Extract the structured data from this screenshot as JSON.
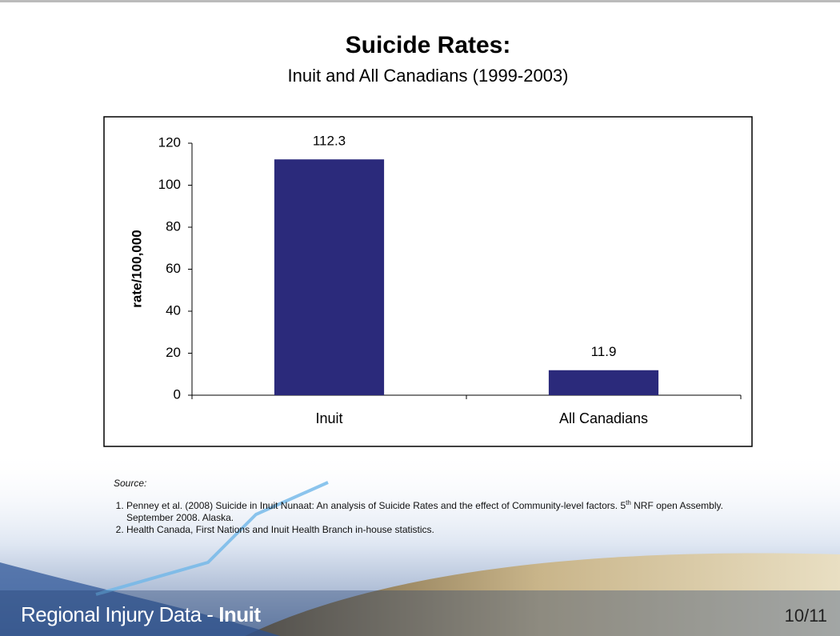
{
  "chart_data": {
    "type": "bar",
    "title": "Suicide Rates:",
    "subtitle": "Inuit and All Canadians (1999-2003)",
    "y_label": "rate/100,000",
    "categories": [
      "Inuit",
      "All Canadians"
    ],
    "values": [
      112.3,
      11.9
    ],
    "color": "#2b2a7b",
    "ylim": [
      0,
      120
    ],
    "yticks": [
      0,
      20,
      40,
      60,
      80,
      100,
      120
    ],
    "grid": false
  },
  "source": {
    "heading": "Source:",
    "items": [
      [
        "Penney et al. (2008) Suicide in Inuit Nunaat: An analysis of Suicide Rates and the effect of Community-level factors. 5",
        "th",
        " NRF open Assembly. September 2008. Alaska."
      ],
      [
        "Health Canada, First Nations and Inuit Health Branch in-house statistics."
      ]
    ]
  },
  "footer": {
    "prefix": "Regional Injury Data - ",
    "topic": "Inuit",
    "page": "10/11"
  }
}
